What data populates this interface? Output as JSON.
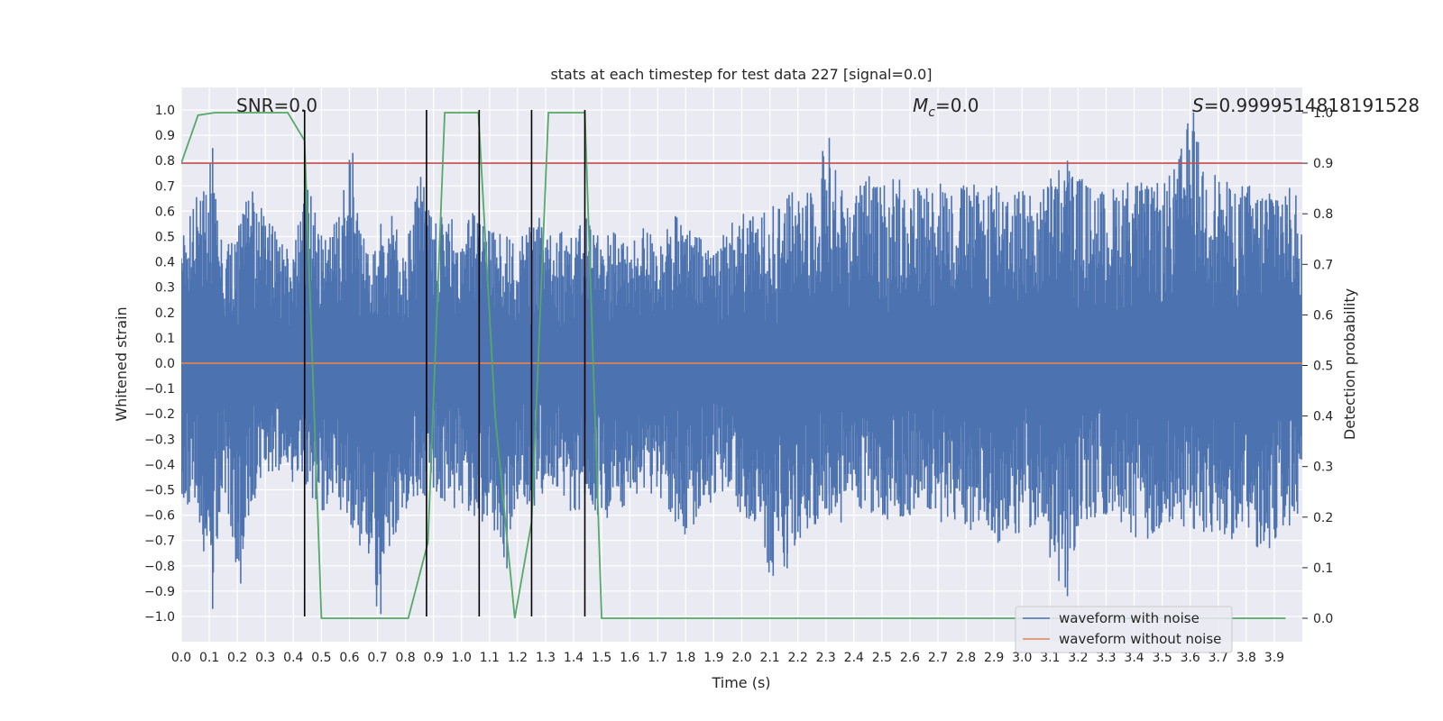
{
  "chart_data": {
    "type": "line",
    "title": "stats at each timestep for test data 227 [signal=0.0]",
    "xlabel": "Time (s)",
    "ylabel": "Whitened strain",
    "ylabel_right": "Detection probability",
    "xlim": [
      0.0,
      4.0
    ],
    "ylim": [
      -1.1,
      1.1
    ],
    "ylim_right": [
      -0.05,
      1.05
    ],
    "x_ticks": [
      "0.0",
      "0.1",
      "0.2",
      "0.3",
      "0.4",
      "0.5",
      "0.6",
      "0.7",
      "0.8",
      "0.9",
      "1.0",
      "1.1",
      "1.2",
      "1.3",
      "1.4",
      "1.5",
      "1.6",
      "1.7",
      "1.8",
      "1.9",
      "2.0",
      "2.1",
      "2.2",
      "2.3",
      "2.4",
      "2.5",
      "2.6",
      "2.7",
      "2.8",
      "2.9",
      "3.0",
      "3.1",
      "3.2",
      "3.3",
      "3.4",
      "3.5",
      "3.6",
      "3.7",
      "3.8",
      "3.9"
    ],
    "y_ticks": [
      "1.0",
      "0.9",
      "0.8",
      "0.7",
      "0.6",
      "0.5",
      "0.4",
      "0.3",
      "0.2",
      "0.1",
      "0.0",
      "−0.1",
      "−0.2",
      "−0.3",
      "−0.4",
      "−0.5",
      "−0.6",
      "−0.7",
      "−0.8",
      "−0.9",
      "−1.0"
    ],
    "y_ticks_right": [
      "1.0",
      "0.9",
      "0.8",
      "0.7",
      "0.6",
      "0.5",
      "0.4",
      "0.3",
      "0.2",
      "0.1",
      "0.0"
    ],
    "annotations": {
      "snr": "SNR=0.0",
      "mc_symbol": "M",
      "mc_sub": "c",
      "mc_value": "=0.0",
      "s_symbol": "S",
      "s_value": "=0.9999514818191528"
    },
    "legend": {
      "location": "lower-right",
      "entries": [
        {
          "label": "waveform with noise",
          "color": "#4c72b0"
        },
        {
          "label": "waveform without noise",
          "color": "#dd8452"
        }
      ]
    },
    "threshold_right": 0.9,
    "threshold_color": "#c44e52",
    "noise_envelope": {
      "description": "dense whitened-strain noise trace (positive and negative peak envelopes, ~0.05 s bins)",
      "x": [
        0.0,
        0.05,
        0.1,
        0.15,
        0.2,
        0.25,
        0.3,
        0.35,
        0.4,
        0.45,
        0.5,
        0.55,
        0.6,
        0.65,
        0.7,
        0.75,
        0.8,
        0.85,
        0.9,
        0.95,
        1.0,
        1.05,
        1.1,
        1.15,
        1.2,
        1.25,
        1.3,
        1.35,
        1.4,
        1.45,
        1.5,
        1.55,
        1.6,
        1.65,
        1.7,
        1.75,
        1.8,
        1.85,
        1.9,
        1.95,
        2.0,
        2.05,
        2.1,
        2.15,
        2.2,
        2.25,
        2.3,
        2.35,
        2.4,
        2.45,
        2.5,
        2.55,
        2.6,
        2.65,
        2.7,
        2.75,
        2.8,
        2.85,
        2.9,
        2.95,
        3.0,
        3.05,
        3.1,
        3.15,
        3.2,
        3.25,
        3.3,
        3.35,
        3.4,
        3.45,
        3.5,
        3.55,
        3.6,
        3.65,
        3.7,
        3.75,
        3.8,
        3.85,
        3.9,
        3.95,
        4.0
      ],
      "pos": [
        0.5,
        0.65,
        0.85,
        0.45,
        0.55,
        0.7,
        0.6,
        0.5,
        0.45,
        0.75,
        0.55,
        0.6,
        0.83,
        0.5,
        0.55,
        0.6,
        0.45,
        0.78,
        0.55,
        0.6,
        0.5,
        0.65,
        0.55,
        0.5,
        0.48,
        0.55,
        0.6,
        0.55,
        0.5,
        0.6,
        0.5,
        0.55,
        0.45,
        0.55,
        0.5,
        0.6,
        0.55,
        0.5,
        0.48,
        0.55,
        0.6,
        0.58,
        0.62,
        0.65,
        0.7,
        0.75,
        0.89,
        0.72,
        0.68,
        0.75,
        0.7,
        0.78,
        0.72,
        0.7,
        0.78,
        0.68,
        0.72,
        0.7,
        0.75,
        0.72,
        0.7,
        0.65,
        0.75,
        0.8,
        0.75,
        0.7,
        0.68,
        0.72,
        0.75,
        0.7,
        0.72,
        0.78,
        0.99,
        0.8,
        0.75,
        0.7,
        0.72,
        0.68,
        0.75,
        0.7,
        0.65
      ],
      "neg": [
        -0.55,
        -0.6,
        -0.97,
        -0.5,
        -0.87,
        -0.55,
        -0.5,
        -0.45,
        -0.48,
        -0.5,
        -0.6,
        -0.55,
        -0.65,
        -0.75,
        -0.99,
        -0.7,
        -0.6,
        -0.55,
        -0.5,
        -0.6,
        -0.55,
        -0.65,
        -0.6,
        -0.81,
        -0.55,
        -0.6,
        -0.5,
        -0.55,
        -0.6,
        -0.55,
        -0.65,
        -0.6,
        -0.55,
        -0.5,
        -0.55,
        -0.6,
        -0.7,
        -0.6,
        -0.55,
        -0.5,
        -0.6,
        -0.65,
        -0.84,
        -0.81,
        -0.7,
        -0.65,
        -0.6,
        -0.65,
        -0.55,
        -0.6,
        -0.65,
        -0.62,
        -0.6,
        -0.55,
        -0.65,
        -0.6,
        -0.7,
        -0.65,
        -0.76,
        -0.65,
        -0.7,
        -0.65,
        -0.78,
        -0.92,
        -0.7,
        -0.65,
        -0.6,
        -0.65,
        -0.7,
        -0.75,
        -0.65,
        -0.7,
        -0.65,
        -0.68,
        -0.72,
        -0.7,
        -0.65,
        -0.8,
        -0.7,
        -0.65,
        -0.6
      ]
    },
    "series": [
      {
        "name": "waveform without noise",
        "axis": "left",
        "color": "#dd8452",
        "x": [
          0.0,
          4.0
        ],
        "y": [
          0.0,
          0.0
        ]
      },
      {
        "name": "detection probability",
        "axis": "right",
        "color": "#55a868",
        "x": [
          0.0,
          0.06,
          0.12,
          0.19,
          0.25,
          0.31,
          0.38,
          0.44,
          0.5,
          0.56,
          0.63,
          0.69,
          0.75,
          0.81,
          0.88,
          0.94,
          1.0,
          1.06,
          1.12,
          1.19,
          1.25,
          1.31,
          1.38,
          1.44,
          1.5,
          1.56,
          1.63,
          1.69,
          1.75,
          3.94
        ],
        "y": [
          0.9,
          0.995,
          1.0,
          1.0,
          1.0,
          1.0,
          1.0,
          0.945,
          0.0,
          0.0,
          0.0,
          0.0,
          0.0,
          0.0,
          0.15,
          1.0,
          1.0,
          1.0,
          0.4,
          0.0,
          0.19,
          1.0,
          1.0,
          1.0,
          0.0,
          0.0,
          0.0,
          0.0,
          0.0,
          0.0
        ]
      }
    ],
    "vertical_markers": [
      0.44,
      0.875,
      1.063,
      1.25,
      1.44
    ],
    "marker_range": [
      -1.0,
      1.0
    ]
  }
}
